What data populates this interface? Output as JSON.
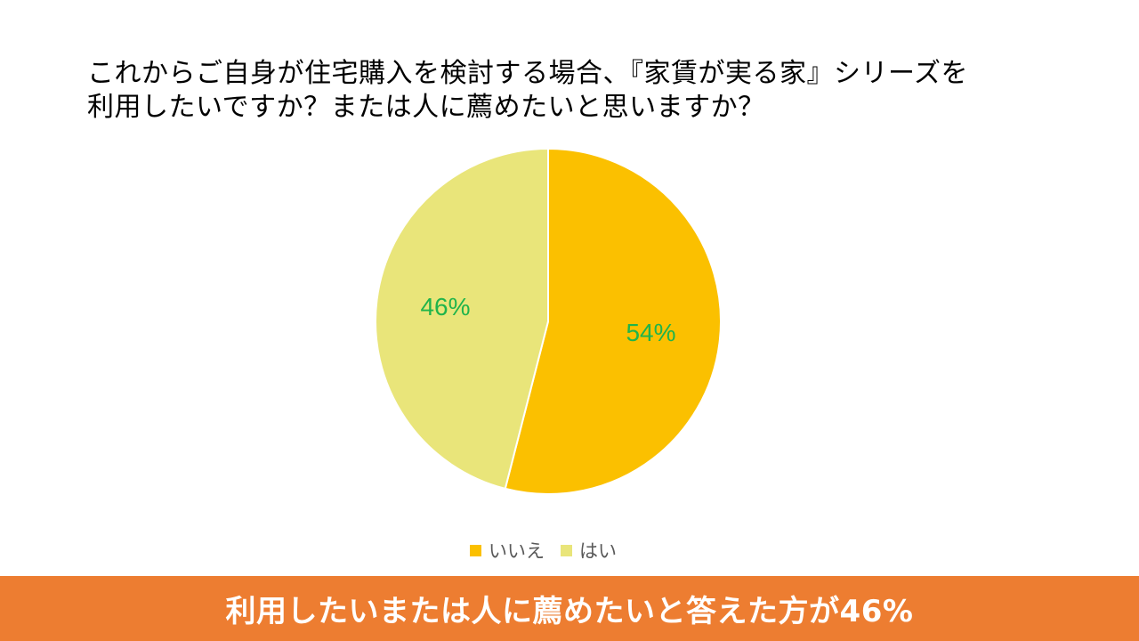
{
  "title": {
    "line1": "これからご自身が住宅購入を検討する場合、『家賃が実る家』シリーズを",
    "line2": "利用したいですか？または人に薦めたいと思いますか？"
  },
  "chart_data": {
    "type": "pie",
    "start_angle_deg": 0,
    "direction": "clockwise",
    "slices": [
      {
        "label": "いいえ",
        "value": 54,
        "data_label": "54%",
        "color": "#fbc000"
      },
      {
        "label": "はい",
        "value": 46,
        "data_label": "46%",
        "color": "#e9e57a"
      }
    ],
    "data_label_color": "#1fb44b",
    "legend_position": "bottom"
  },
  "banner": {
    "text": "利用したいまたは人に薦めたいと答えた方が46%",
    "color": "#ed7d31"
  }
}
